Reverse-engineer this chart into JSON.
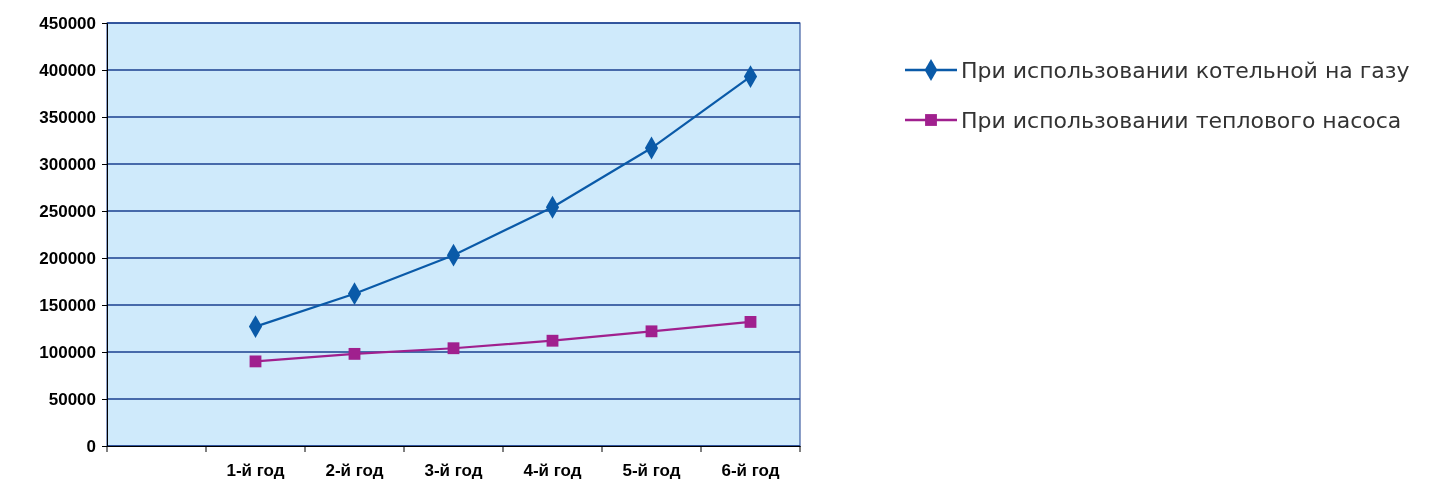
{
  "chart_data": {
    "type": "line",
    "categories": [
      null,
      "1-й год",
      "2-й год",
      "3-й год",
      "4-й год",
      "5-й год",
      "6-й год"
    ],
    "series": [
      {
        "name": "При использовании котельной на газу",
        "color": "#0a5aa8",
        "marker": "diamond",
        "values": [
          null,
          127000,
          162000,
          203000,
          254000,
          317000,
          393000
        ]
      },
      {
        "name": "При использовании теплового насоса",
        "color": "#a0208e",
        "marker": "square",
        "values": [
          null,
          90000,
          98000,
          104000,
          112000,
          122000,
          132000
        ]
      }
    ],
    "ylim": [
      0,
      450000
    ],
    "yticks": [
      0,
      50000,
      100000,
      150000,
      200000,
      250000,
      300000,
      350000,
      400000,
      450000
    ],
    "grid": "y",
    "legend": "right"
  }
}
